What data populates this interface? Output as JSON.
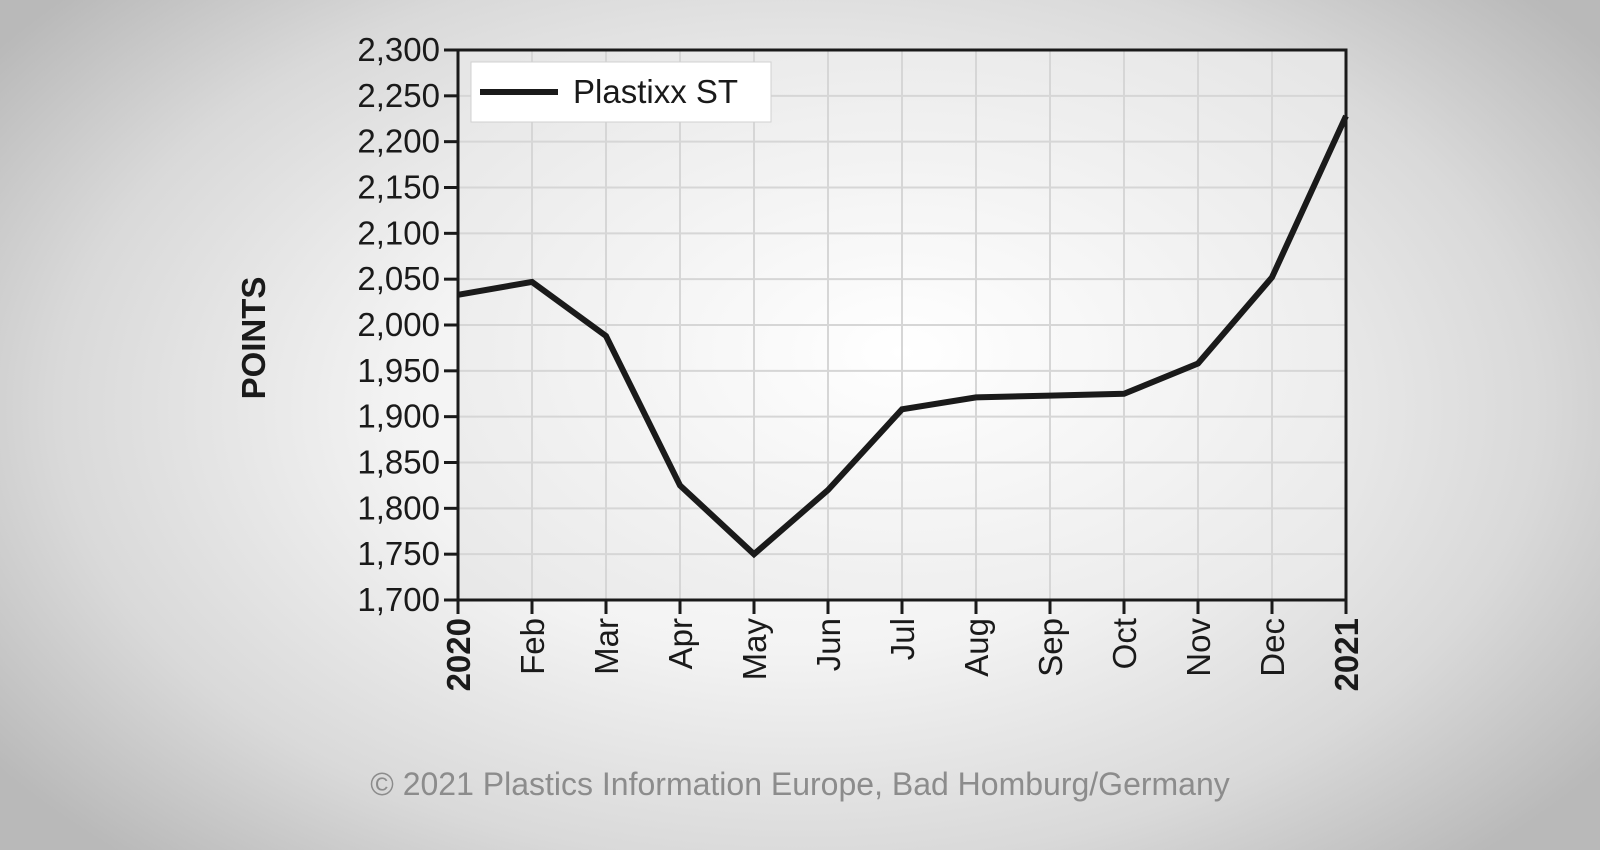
{
  "chart_data": {
    "type": "line",
    "ylabel": "POINTS",
    "xlabel": "",
    "ylim": [
      1700,
      2300
    ],
    "yticks": [
      "1,700",
      "1,750",
      "1,800",
      "1,850",
      "1,900",
      "1,950",
      "2,000",
      "2,050",
      "2,100",
      "2,150",
      "2,200",
      "2,250",
      "2,300"
    ],
    "ytick_values": [
      1700,
      1750,
      1800,
      1850,
      1900,
      1950,
      2000,
      2050,
      2100,
      2150,
      2200,
      2250,
      2300
    ],
    "categories": [
      "2020",
      "Feb",
      "Mar",
      "Apr",
      "May",
      "Jun",
      "Jul",
      "Aug",
      "Sep",
      "Oct",
      "Nov",
      "Dec",
      "2021"
    ],
    "bold_categories": [
      "2020",
      "2021"
    ],
    "grid": true,
    "legend_position": "top-left",
    "series": [
      {
        "name": "Plastixx ST",
        "color": "#1a1a1a",
        "values": [
          2033,
          2047,
          1988,
          1825,
          1750,
          1820,
          1908,
          1921,
          1923,
          1925,
          1958,
          2052,
          2228
        ]
      }
    ]
  },
  "footer": {
    "copyright": "© 2021 Plastics Information Europe, Bad Homburg/Germany"
  }
}
